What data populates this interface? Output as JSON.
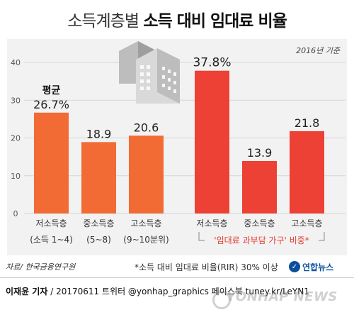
{
  "title": {
    "part1": "소득계층별",
    "part2": "소득 대비 임대료 비율"
  },
  "base_year": "2016년 기준",
  "colors": {
    "left_bars": "#f26b35",
    "right_bars": "#ec4134",
    "highlight_text": "#e53c2e",
    "panel": "#f2f2f2",
    "grid": "#d6d6d6"
  },
  "icon": "apartment-building-icon",
  "chart_data": {
    "type": "bar",
    "ylim": [
      0,
      40
    ],
    "yticks": [
      0,
      10,
      20,
      30,
      40
    ],
    "grid": true,
    "groups": [
      {
        "categories": [
          "저소득층",
          "중소득층",
          "고소득층"
        ],
        "sublabels": [
          "(소득 1~4)",
          "(5~8)",
          "(9~10분위)"
        ],
        "values": [
          26.7,
          18.9,
          20.6
        ],
        "value_labels": [
          "26.7%",
          "18.9",
          "20.6"
        ],
        "annotation": "평균"
      },
      {
        "categories": [
          "저소득층",
          "중소득층",
          "고소득층"
        ],
        "values": [
          37.8,
          13.9,
          21.8
        ],
        "value_labels": [
          "37.8%",
          "13.9",
          "21.8"
        ],
        "bracket_label": "'임대료 과부담 가구' 비중*"
      }
    ]
  },
  "footer": {
    "source": "자료/ 한국금융연구원",
    "note": "*소득 대비 임대료 비율(RIR) 30% 이상",
    "logo_text": "연합뉴스",
    "author": "이재윤 기자",
    "date": "20170611",
    "social": "트위터 @yonhap_graphics  페이스북 tuney.kr/LeYN1",
    "watermark": "YONHAP NEWS"
  }
}
